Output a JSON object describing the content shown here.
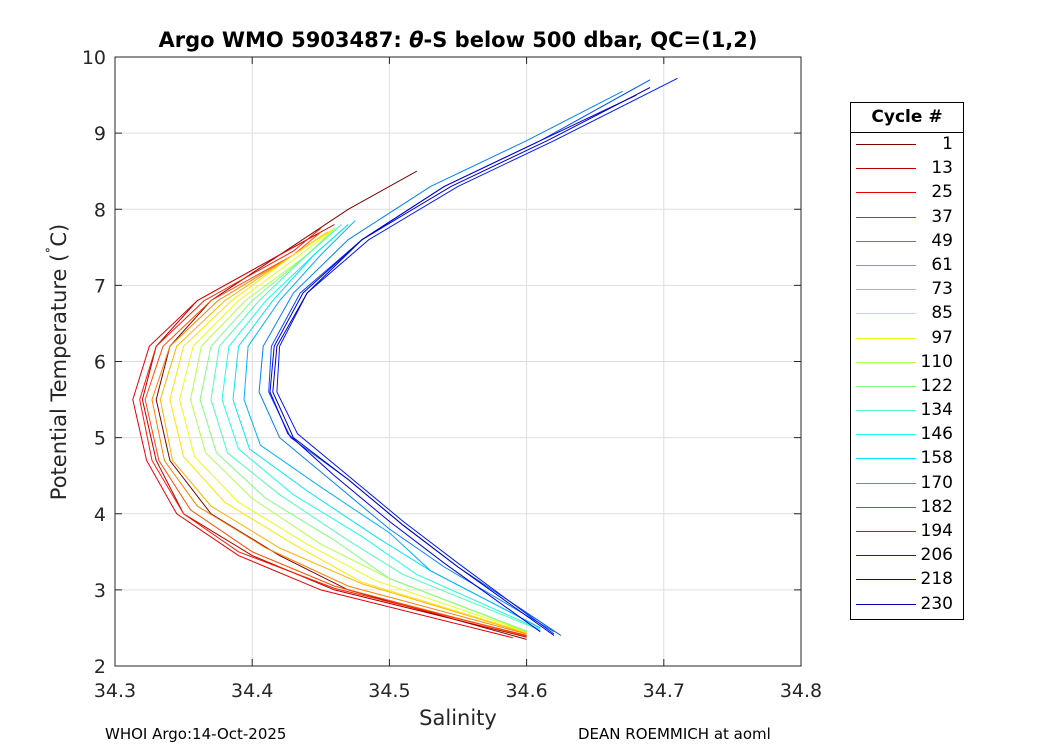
{
  "chart_data": {
    "type": "line",
    "title_parts": [
      "Argo WMO 5903487: ",
      "θ",
      "-S below 500 dbar,  QC=(1,2)"
    ],
    "xlabel": "Salinity",
    "ylabel_parts": [
      "Potential Temperature (",
      "˚",
      "C)"
    ],
    "xlim": [
      34.3,
      34.8
    ],
    "ylim": [
      2,
      10
    ],
    "xticks": [
      34.3,
      34.4,
      34.5,
      34.6,
      34.7,
      34.8
    ],
    "xtick_labels": [
      "34.3",
      "34.4",
      "34.5",
      "34.6",
      "34.7",
      "34.8"
    ],
    "yticks": [
      2,
      3,
      4,
      5,
      6,
      7,
      8,
      9,
      10
    ],
    "ytick_labels": [
      "2",
      "3",
      "4",
      "5",
      "6",
      "7",
      "8",
      "9",
      "10"
    ],
    "grid": true,
    "legend_position": "right-outside",
    "legend_title": "Cycle #",
    "legend_entries": [
      "1",
      "13",
      "25",
      "37",
      "49",
      "61",
      "73",
      "85",
      "97",
      "110",
      "122",
      "134",
      "146",
      "158",
      "170",
      "182",
      "194",
      "206",
      "218",
      "230"
    ],
    "legend_colors": [
      "#800000",
      "#b20000",
      "#e60000",
      "#ff1a00",
      "#ff4d00",
      "#ff8000",
      "#ffb300",
      "#ffe600",
      "#e5ff1a",
      "#b3ff4d",
      "#80ff80",
      "#4dffb3",
      "#1affe6",
      "#00e6ff",
      "#00b3ff",
      "#0080ff",
      "#004dff",
      "#001aff",
      "#0000e6",
      "#0000b3"
    ],
    "series": [
      {
        "name": "1",
        "color": "#800000",
        "points": [
          [
            34.6,
            2.35
          ],
          [
            34.47,
            3.0
          ],
          [
            34.42,
            3.45
          ],
          [
            34.37,
            4.0
          ],
          [
            34.34,
            4.7
          ],
          [
            34.33,
            5.5
          ],
          [
            34.34,
            6.2
          ],
          [
            34.37,
            6.8
          ],
          [
            34.42,
            7.4
          ],
          [
            34.47,
            8.0
          ],
          [
            34.52,
            8.5
          ]
        ]
      },
      {
        "name": "13",
        "color": "#b20000",
        "points": [
          [
            34.6,
            2.38
          ],
          [
            34.46,
            3.0
          ],
          [
            34.4,
            3.45
          ],
          [
            34.35,
            4.0
          ],
          [
            34.33,
            4.7
          ],
          [
            34.32,
            5.5
          ],
          [
            34.33,
            6.2
          ],
          [
            34.36,
            6.8
          ],
          [
            34.41,
            7.3
          ],
          [
            34.46,
            7.8
          ]
        ]
      },
      {
        "name": "25",
        "color": "#e60000",
        "points": [
          [
            34.59,
            2.37
          ],
          [
            34.45,
            3.0
          ],
          [
            34.39,
            3.45
          ],
          [
            34.345,
            4.0
          ],
          [
            34.323,
            4.7
          ],
          [
            34.313,
            5.5
          ],
          [
            34.325,
            6.2
          ],
          [
            34.36,
            6.8
          ],
          [
            34.42,
            7.4
          ],
          [
            34.45,
            7.7
          ]
        ]
      },
      {
        "name": "37",
        "color": "#ff1a00",
        "points": [
          [
            34.6,
            2.4
          ],
          [
            34.46,
            3.02
          ],
          [
            34.39,
            3.5
          ],
          [
            34.35,
            4.0
          ],
          [
            34.327,
            4.7
          ],
          [
            34.318,
            5.5
          ],
          [
            34.33,
            6.2
          ],
          [
            34.365,
            6.8
          ],
          [
            34.43,
            7.45
          ],
          [
            34.45,
            7.75
          ]
        ]
      },
      {
        "name": "49",
        "color": "#ff4d00",
        "points": [
          [
            34.6,
            2.39
          ],
          [
            34.46,
            3.05
          ],
          [
            34.4,
            3.5
          ],
          [
            34.355,
            4.05
          ],
          [
            34.332,
            4.7
          ],
          [
            34.322,
            5.5
          ],
          [
            34.335,
            6.2
          ],
          [
            34.37,
            6.8
          ],
          [
            34.43,
            7.4
          ],
          [
            34.45,
            7.7
          ]
        ]
      },
      {
        "name": "61",
        "color": "#ff8000",
        "points": [
          [
            34.6,
            2.42
          ],
          [
            34.47,
            3.05
          ],
          [
            34.41,
            3.55
          ],
          [
            34.36,
            4.1
          ],
          [
            34.336,
            4.7
          ],
          [
            34.327,
            5.5
          ],
          [
            34.34,
            6.2
          ],
          [
            34.375,
            6.8
          ],
          [
            34.43,
            7.4
          ],
          [
            34.455,
            7.7
          ]
        ]
      },
      {
        "name": "73",
        "color": "#ffb300",
        "points": [
          [
            34.6,
            2.43
          ],
          [
            34.48,
            3.08
          ],
          [
            34.42,
            3.55
          ],
          [
            34.37,
            4.1
          ],
          [
            34.342,
            4.7
          ],
          [
            34.333,
            5.5
          ],
          [
            34.345,
            6.2
          ],
          [
            34.38,
            6.8
          ],
          [
            34.43,
            7.4
          ],
          [
            34.455,
            7.7
          ]
        ]
      },
      {
        "name": "85",
        "color": "#ffe600",
        "points": [
          [
            34.6,
            2.44
          ],
          [
            34.48,
            3.1
          ],
          [
            34.43,
            3.6
          ],
          [
            34.38,
            4.15
          ],
          [
            34.35,
            4.75
          ],
          [
            34.34,
            5.5
          ],
          [
            34.35,
            6.2
          ],
          [
            34.385,
            6.8
          ],
          [
            34.43,
            7.4
          ],
          [
            34.46,
            7.75
          ]
        ]
      },
      {
        "name": "97",
        "color": "#e5ff1a",
        "points": [
          [
            34.6,
            2.45
          ],
          [
            34.49,
            3.12
          ],
          [
            34.44,
            3.6
          ],
          [
            34.39,
            4.15
          ],
          [
            34.358,
            4.75
          ],
          [
            34.347,
            5.5
          ],
          [
            34.357,
            6.2
          ],
          [
            34.39,
            6.8
          ],
          [
            34.435,
            7.4
          ],
          [
            34.46,
            7.75
          ]
        ]
      },
      {
        "name": "110",
        "color": "#b3ff4d",
        "points": [
          [
            34.6,
            2.45
          ],
          [
            34.5,
            3.15
          ],
          [
            34.45,
            3.6
          ],
          [
            34.4,
            4.2
          ],
          [
            34.366,
            4.8
          ],
          [
            34.355,
            5.5
          ],
          [
            34.363,
            6.2
          ],
          [
            34.395,
            6.8
          ],
          [
            34.44,
            7.4
          ],
          [
            34.46,
            7.75
          ]
        ]
      },
      {
        "name": "122",
        "color": "#80ff80",
        "points": [
          [
            34.6,
            2.46
          ],
          [
            34.5,
            3.15
          ],
          [
            34.46,
            3.65
          ],
          [
            34.41,
            4.2
          ],
          [
            34.374,
            4.8
          ],
          [
            34.362,
            5.5
          ],
          [
            34.37,
            6.2
          ],
          [
            34.4,
            6.8
          ],
          [
            34.44,
            7.4
          ],
          [
            34.465,
            7.8
          ]
        ]
      },
      {
        "name": "134",
        "color": "#4dffb3",
        "points": [
          [
            34.61,
            2.47
          ],
          [
            34.51,
            3.2
          ],
          [
            34.47,
            3.65
          ],
          [
            34.42,
            4.25
          ],
          [
            34.382,
            4.8
          ],
          [
            34.37,
            5.5
          ],
          [
            34.376,
            6.2
          ],
          [
            34.405,
            6.8
          ],
          [
            34.44,
            7.4
          ],
          [
            34.465,
            7.8
          ]
        ]
      },
      {
        "name": "146",
        "color": "#1affe6",
        "points": [
          [
            34.61,
            2.48
          ],
          [
            34.52,
            3.2
          ],
          [
            34.48,
            3.7
          ],
          [
            34.43,
            4.25
          ],
          [
            34.39,
            4.85
          ],
          [
            34.378,
            5.5
          ],
          [
            34.383,
            6.2
          ],
          [
            34.41,
            6.8
          ],
          [
            34.445,
            7.4
          ],
          [
            34.47,
            7.8
          ]
        ]
      },
      {
        "name": "158",
        "color": "#00e6ff",
        "points": [
          [
            34.61,
            2.5
          ],
          [
            34.53,
            3.25
          ],
          [
            34.49,
            3.7
          ],
          [
            34.44,
            4.3
          ],
          [
            34.398,
            4.85
          ],
          [
            34.386,
            5.5
          ],
          [
            34.39,
            6.2
          ],
          [
            34.415,
            6.8
          ],
          [
            34.445,
            7.4
          ],
          [
            34.47,
            7.8
          ]
        ]
      },
      {
        "name": "170",
        "color": "#00b3ff",
        "points": [
          [
            34.61,
            2.5
          ],
          [
            34.53,
            3.25
          ],
          [
            34.5,
            3.75
          ],
          [
            34.45,
            4.35
          ],
          [
            34.406,
            4.9
          ],
          [
            34.394,
            5.5
          ],
          [
            34.397,
            6.2
          ],
          [
            34.42,
            6.8
          ],
          [
            34.45,
            7.4
          ],
          [
            34.475,
            7.85
          ]
        ]
      },
      {
        "name": "182",
        "color": "#0080ff",
        "points": [
          [
            34.62,
            2.45
          ],
          [
            34.54,
            3.3
          ],
          [
            34.5,
            3.8
          ],
          [
            34.46,
            4.4
          ],
          [
            34.42,
            5.0
          ],
          [
            34.405,
            5.6
          ],
          [
            34.408,
            6.2
          ],
          [
            34.43,
            6.9
          ],
          [
            34.47,
            7.6
          ],
          [
            34.53,
            8.3
          ],
          [
            34.6,
            8.9
          ],
          [
            34.67,
            9.55
          ]
        ]
      },
      {
        "name": "194",
        "color": "#004dff",
        "points": [
          [
            34.625,
            2.4
          ],
          [
            34.55,
            3.3
          ],
          [
            34.51,
            3.85
          ],
          [
            34.47,
            4.45
          ],
          [
            34.428,
            5.0
          ],
          [
            34.412,
            5.6
          ],
          [
            34.414,
            6.2
          ],
          [
            34.435,
            6.9
          ],
          [
            34.48,
            7.6
          ],
          [
            34.54,
            8.3
          ],
          [
            34.61,
            8.9
          ],
          [
            34.69,
            9.7
          ]
        ]
      },
      {
        "name": "206",
        "color": "#001aff",
        "points": [
          [
            34.62,
            2.42
          ],
          [
            34.55,
            3.35
          ],
          [
            34.51,
            3.9
          ],
          [
            34.47,
            4.5
          ],
          [
            34.433,
            5.05
          ],
          [
            34.418,
            5.6
          ],
          [
            34.42,
            6.2
          ],
          [
            34.44,
            6.9
          ],
          [
            34.485,
            7.6
          ],
          [
            34.55,
            8.3
          ],
          [
            34.62,
            8.9
          ],
          [
            34.71,
            9.72
          ]
        ]
      },
      {
        "name": "218",
        "color": "#0000e6",
        "points": [
          [
            34.61,
            2.45
          ],
          [
            34.54,
            3.35
          ],
          [
            34.5,
            3.9
          ],
          [
            34.46,
            4.5
          ],
          [
            34.426,
            5.05
          ],
          [
            34.413,
            5.6
          ],
          [
            34.416,
            6.2
          ],
          [
            34.437,
            6.9
          ],
          [
            34.48,
            7.6
          ],
          [
            34.54,
            8.3
          ],
          [
            34.61,
            8.9
          ],
          [
            34.68,
            9.5
          ]
        ]
      },
      {
        "name": "230",
        "color": "#0000b3",
        "points": [
          [
            34.62,
            2.4
          ],
          [
            34.55,
            3.3
          ],
          [
            34.51,
            3.85
          ],
          [
            34.47,
            4.45
          ],
          [
            34.43,
            5.0
          ],
          [
            34.415,
            5.6
          ],
          [
            34.418,
            6.2
          ],
          [
            34.44,
            6.9
          ],
          [
            34.48,
            7.6
          ],
          [
            34.545,
            8.3
          ],
          [
            34.615,
            8.9
          ],
          [
            34.69,
            9.6
          ]
        ]
      }
    ]
  },
  "footer": {
    "left": "WHOI Argo:14-Oct-2025",
    "right": "DEAN ROEMMICH at aoml"
  }
}
